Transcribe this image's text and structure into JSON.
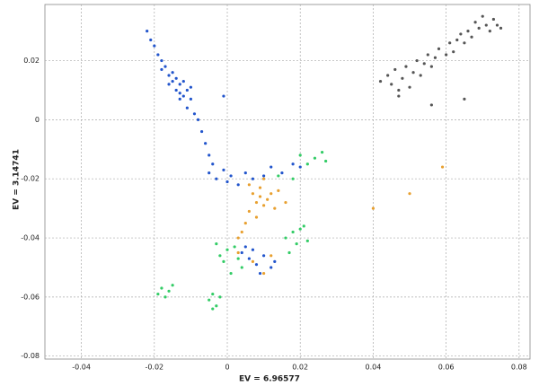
{
  "chart_data": {
    "type": "scatter",
    "x_label": "EV = 6.96577",
    "y_label": "EV = 3.14741",
    "xlim": [
      -0.05,
      0.083
    ],
    "ylim": [
      -0.081,
      0.039
    ],
    "xticks": [
      -0.04,
      -0.02,
      0,
      0.02,
      0.04,
      0.06,
      0.08
    ],
    "yticks": [
      -0.08,
      -0.06,
      -0.04,
      -0.02,
      0,
      0.02
    ],
    "grid": true,
    "series": [
      {
        "color": "#2255cc",
        "x": [
          -0.022,
          -0.021,
          -0.02,
          -0.019,
          -0.018,
          -0.018,
          -0.017,
          -0.016,
          -0.016,
          -0.015,
          -0.015,
          -0.014,
          -0.014,
          -0.013,
          -0.013,
          -0.012,
          -0.012,
          -0.011,
          -0.011,
          -0.01,
          -0.009,
          -0.008,
          -0.007,
          -0.006,
          -0.005,
          -0.004,
          -0.005,
          -0.003,
          -0.001,
          0,
          0.001,
          0.003,
          0.005,
          0.007,
          0.01,
          0.012,
          0.015,
          0.018,
          0.02,
          0.004,
          0.006,
          0.008,
          0.01,
          0.012,
          0.005,
          0.007,
          0.009,
          -0.001,
          0.013,
          -0.013,
          -0.01
        ],
        "values": [
          0.03,
          0.027,
          0.025,
          0.022,
          0.02,
          0.017,
          0.018,
          0.015,
          0.012,
          0.016,
          0.013,
          0.014,
          0.01,
          0.012,
          0.009,
          0.013,
          0.008,
          0.01,
          0.004,
          0.007,
          0.002,
          0,
          -0.004,
          -0.008,
          -0.012,
          -0.015,
          -0.018,
          -0.02,
          -0.017,
          -0.021,
          -0.019,
          -0.022,
          -0.018,
          -0.02,
          -0.019,
          -0.016,
          -0.018,
          -0.015,
          -0.016,
          -0.045,
          -0.047,
          -0.049,
          -0.046,
          -0.05,
          -0.043,
          -0.044,
          -0.052,
          0.008,
          -0.048,
          0.007,
          0.011
        ]
      },
      {
        "color": "#e8a030",
        "x": [
          0.008,
          0.009,
          0.01,
          0.007,
          0.011,
          0.006,
          0.009,
          0.012,
          0.005,
          0.004,
          0.003,
          0.008,
          0.013,
          0.014,
          0.007,
          0.01,
          0.012,
          0.003,
          0.006,
          0.01,
          0.04,
          0.05,
          0.059,
          0.016
        ],
        "values": [
          -0.028,
          -0.026,
          -0.029,
          -0.025,
          -0.027,
          -0.031,
          -0.023,
          -0.025,
          -0.035,
          -0.038,
          -0.04,
          -0.033,
          -0.03,
          -0.024,
          -0.048,
          -0.052,
          -0.046,
          -0.045,
          -0.022,
          -0.02,
          -0.03,
          -0.025,
          -0.016,
          -0.028
        ]
      },
      {
        "color": "#33cc66",
        "x": [
          -0.019,
          -0.018,
          -0.017,
          -0.016,
          -0.015,
          -0.004,
          -0.005,
          -0.003,
          -0.004,
          -0.002,
          -0.003,
          -0.002,
          -0.001,
          0,
          0.002,
          0.003,
          0.001,
          0.004,
          0.016,
          0.018,
          0.02,
          0.022,
          0.019,
          0.021,
          0.017,
          0.02,
          0.022,
          0.024,
          0.026,
          0.027,
          0.018,
          0.014
        ],
        "values": [
          -0.059,
          -0.057,
          -0.06,
          -0.058,
          -0.056,
          -0.059,
          -0.061,
          -0.063,
          -0.064,
          -0.06,
          -0.042,
          -0.046,
          -0.048,
          -0.044,
          -0.043,
          -0.047,
          -0.052,
          -0.05,
          -0.04,
          -0.038,
          -0.037,
          -0.041,
          -0.042,
          -0.036,
          -0.045,
          -0.012,
          -0.015,
          -0.013,
          -0.011,
          -0.014,
          -0.02,
          -0.019
        ]
      },
      {
        "color": "#555555",
        "x": [
          0.042,
          0.044,
          0.045,
          0.046,
          0.047,
          0.048,
          0.049,
          0.05,
          0.051,
          0.052,
          0.053,
          0.054,
          0.055,
          0.056,
          0.057,
          0.058,
          0.06,
          0.061,
          0.062,
          0.063,
          0.064,
          0.065,
          0.066,
          0.067,
          0.068,
          0.069,
          0.07,
          0.071,
          0.072,
          0.073,
          0.074,
          0.075,
          0.056,
          0.065,
          0.047
        ],
        "values": [
          0.013,
          0.015,
          0.012,
          0.017,
          0.01,
          0.014,
          0.018,
          0.011,
          0.016,
          0.02,
          0.015,
          0.019,
          0.022,
          0.018,
          0.021,
          0.024,
          0.022,
          0.026,
          0.023,
          0.027,
          0.029,
          0.026,
          0.03,
          0.028,
          0.033,
          0.031,
          0.035,
          0.032,
          0.03,
          0.034,
          0.032,
          0.031,
          0.005,
          0.007,
          0.008
        ]
      }
    ]
  }
}
